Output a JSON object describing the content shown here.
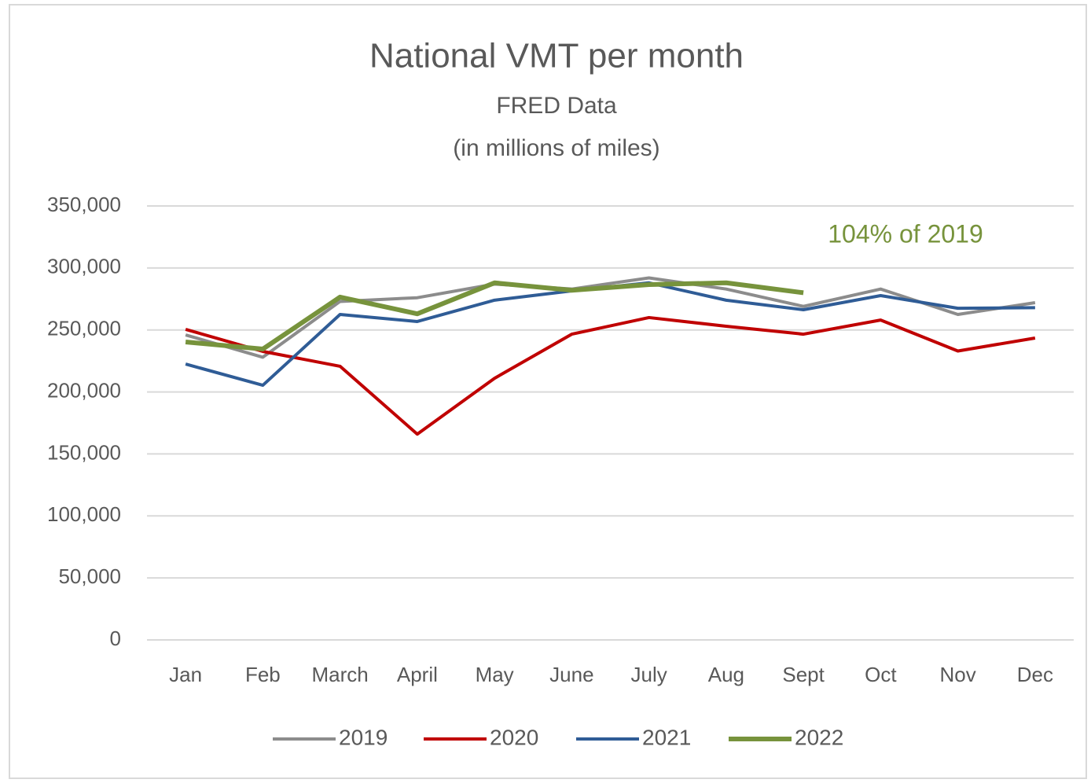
{
  "chart_data": {
    "type": "line",
    "title": "National VMT per month",
    "subtitle": "FRED Data",
    "subtitle2": "(in millions of miles)",
    "annotation": "104% of 2019",
    "annotation_color": "#77933c",
    "categories": [
      "Jan",
      "Feb",
      "March",
      "April",
      "May",
      "June",
      "July",
      "Aug",
      "Sept",
      "Oct",
      "Nov",
      "Dec"
    ],
    "series": [
      {
        "name": "2019",
        "color": "#8c8c8c",
        "values": [
          246000,
          228000,
          273000,
          276000,
          287000,
          283000,
          292000,
          283000,
          269000,
          283000,
          262500,
          272000
        ]
      },
      {
        "name": "2020",
        "color": "#c00000",
        "values": [
          250500,
          232700,
          220700,
          166000,
          211000,
          246600,
          260000,
          253000,
          246600,
          258000,
          233000,
          243500
        ]
      },
      {
        "name": "2021",
        "color": "#2f5c96",
        "values": [
          222500,
          205400,
          262500,
          256800,
          274000,
          281500,
          288000,
          274000,
          266300,
          277700,
          267500,
          268000
        ]
      },
      {
        "name": "2022",
        "color": "#77933c",
        "values": [
          240300,
          234600,
          276500,
          263000,
          288000,
          282000,
          286600,
          288000,
          280000,
          null,
          null,
          null
        ]
      }
    ],
    "ylim": [
      0,
      350000
    ],
    "yticks": [
      0,
      {
        "value": 50000,
        "label": "50,000"
      },
      {
        "value": 100000,
        "label": "100,000"
      },
      {
        "value": 150000,
        "label": "150,000"
      },
      {
        "value": 200000,
        "label": "200,000"
      },
      {
        "value": 250000,
        "label": "250,000"
      },
      {
        "value": 300000,
        "label": "300,000"
      },
      {
        "value": 350000,
        "label": "350,000"
      }
    ],
    "grid": true
  }
}
